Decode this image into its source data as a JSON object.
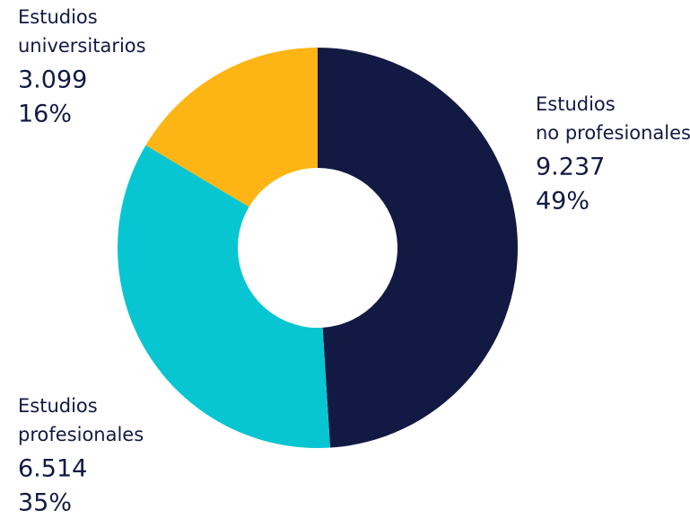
{
  "chart_data": {
    "type": "donut",
    "categories": [
      "Estudios no profesionales",
      "Estudios profesionales",
      "Estudios universitarios"
    ],
    "values": [
      9237,
      6514,
      3099
    ],
    "value_labels": [
      "9.237",
      "6.514",
      "3.099"
    ],
    "percent_labels": [
      "49%",
      "35%",
      "16%"
    ],
    "colors": [
      "#121a43",
      "#08c6d1",
      "#fdb515"
    ]
  }
}
